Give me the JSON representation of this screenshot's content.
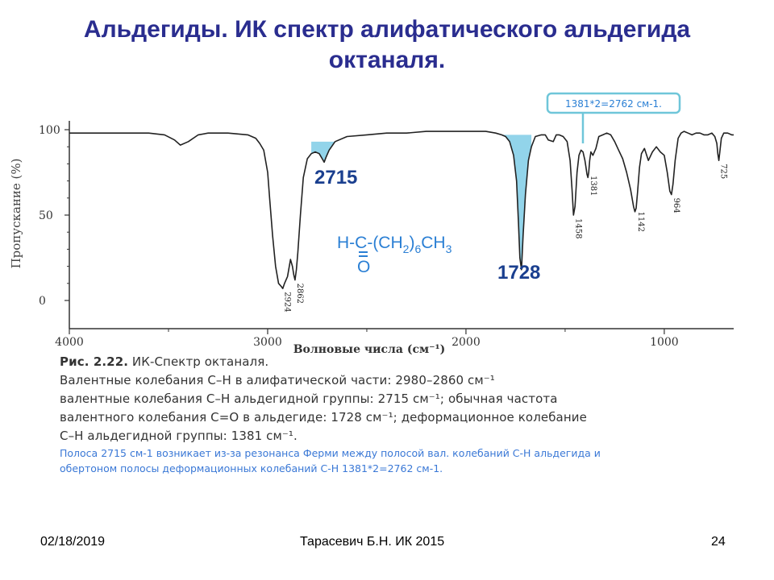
{
  "slide": {
    "title_line1": "Альдегиды. ИК спектр алифатического альдегида",
    "title_line2": "октаналя."
  },
  "caption": {
    "figure_label": "Рис. 2.22.",
    "figure_title": " ИК-Спектр октаналя.",
    "line2": "Валентные колебания C–H в алифатической части: 2980–2860 см⁻¹",
    "line3": "валентные колебания C–H альдегидной группы: 2715 см⁻¹; обычная частота",
    "line4": "валентного колебания C=O в альдегиде: 1728 см⁻¹; деформационное колебание",
    "line5": "C–H альдегидной группы: 1381 см⁻¹."
  },
  "note": {
    "line1": "Полоса 2715 см-1 возникает из-за резонанса Ферми между полосой вал. колебаний С-Н альдегида и",
    "line2": "обертоном полосы деформационных колебаний С-Н 1381*2=2762 см-1."
  },
  "footer": {
    "date": "02/18/2019",
    "author": "Тарасевич Б.Н.  ИК 2015",
    "page": "24"
  },
  "chart_data": {
    "type": "line",
    "title": "",
    "xlabel": "Волновые числа (см⁻¹)",
    "ylabel": "Пропускание (%)",
    "xlim": [
      4000,
      650
    ],
    "ylim": [
      0,
      100
    ],
    "x_ticks": [
      4000,
      3000,
      2000,
      1000
    ],
    "x_tick_labels": [
      "4000",
      "3000",
      "2000",
      "1000"
    ],
    "y_ticks": [
      100,
      50,
      0
    ],
    "y_tick_labels": [
      "100",
      "50",
      "0"
    ],
    "series": [
      {
        "x": [
          4000,
          3800,
          3600,
          3520,
          3470,
          3440,
          3400,
          3350,
          3300,
          3200,
          3100,
          3060,
          3040,
          3020,
          3000,
          2990,
          2975,
          2960,
          2945,
          2930,
          2924,
          2915,
          2900,
          2885,
          2875,
          2868,
          2862,
          2855,
          2848,
          2835,
          2820,
          2800,
          2780,
          2760,
          2740,
          2725,
          2715,
          2705,
          2690,
          2660,
          2600,
          2500,
          2400,
          2300,
          2200,
          2100,
          2000,
          1950,
          1900,
          1850,
          1820,
          1800,
          1780,
          1760,
          1745,
          1735,
          1728,
          1720,
          1712,
          1700,
          1685,
          1670,
          1650,
          1620,
          1600,
          1585,
          1560,
          1545,
          1530,
          1510,
          1490,
          1475,
          1465,
          1458,
          1450,
          1440,
          1430,
          1420,
          1410,
          1400,
          1395,
          1390,
          1385,
          1381,
          1376,
          1370,
          1360,
          1345,
          1330,
          1310,
          1290,
          1270,
          1250,
          1230,
          1210,
          1190,
          1170,
          1155,
          1148,
          1142,
          1135,
          1125,
          1115,
          1100,
          1080,
          1060,
          1040,
          1020,
          1000,
          985,
          972,
          964,
          956,
          945,
          930,
          915,
          900,
          880,
          860,
          840,
          820,
          800,
          780,
          760,
          745,
          735,
          730,
          725,
          720,
          712,
          700,
          680,
          660,
          650
        ],
        "y": [
          98,
          98,
          98,
          97,
          94,
          91,
          93,
          97,
          98,
          98,
          97,
          95,
          92,
          88,
          75,
          60,
          38,
          20,
          10,
          8,
          7,
          10,
          14,
          24,
          20,
          15,
          12,
          18,
          28,
          50,
          72,
          83,
          86,
          87,
          86,
          83,
          81,
          84,
          88,
          93,
          96,
          97,
          98,
          98,
          99,
          99,
          99,
          99,
          99,
          98,
          97,
          96,
          93,
          85,
          70,
          45,
          25,
          18,
          38,
          62,
          82,
          90,
          96,
          97,
          97,
          94,
          93,
          97,
          97,
          96,
          93,
          82,
          65,
          50,
          55,
          75,
          85,
          88,
          87,
          82,
          78,
          74,
          72,
          75,
          82,
          87,
          85,
          89,
          96,
          97,
          98,
          97,
          93,
          88,
          83,
          75,
          65,
          55,
          52,
          54,
          63,
          78,
          86,
          89,
          82,
          87,
          90,
          87,
          85,
          75,
          64,
          62,
          68,
          82,
          95,
          98,
          99,
          98,
          97,
          98,
          98,
          97,
          97,
          98,
          96,
          92,
          86,
          82,
          87,
          95,
          98,
          98,
          97,
          97
        ]
      }
    ],
    "shaded_regions": [
      {
        "x_from": 2790,
        "x_to": 2640,
        "label": "2715"
      },
      {
        "x_from": 1830,
        "x_to": 1660,
        "label": "1728"
      }
    ],
    "annotations_large": [
      "2715",
      "1728"
    ],
    "peak_labels": [
      "2924",
      "2862",
      "1458",
      "1381",
      "1142",
      "964",
      "725"
    ],
    "callout": "1381*2=2762 см-1.",
    "formula": {
      "part1": "H-C-(CH",
      "sub1": "2",
      "part2": ")",
      "sub2": "6",
      "part3": "CH",
      "sub3": "3",
      "carbonyl_O": "O"
    },
    "colors": {
      "trace": "#222222",
      "shade": "#7fcde6",
      "highlight": "#2a7fd4",
      "callout": "#6fc6d9"
    }
  }
}
